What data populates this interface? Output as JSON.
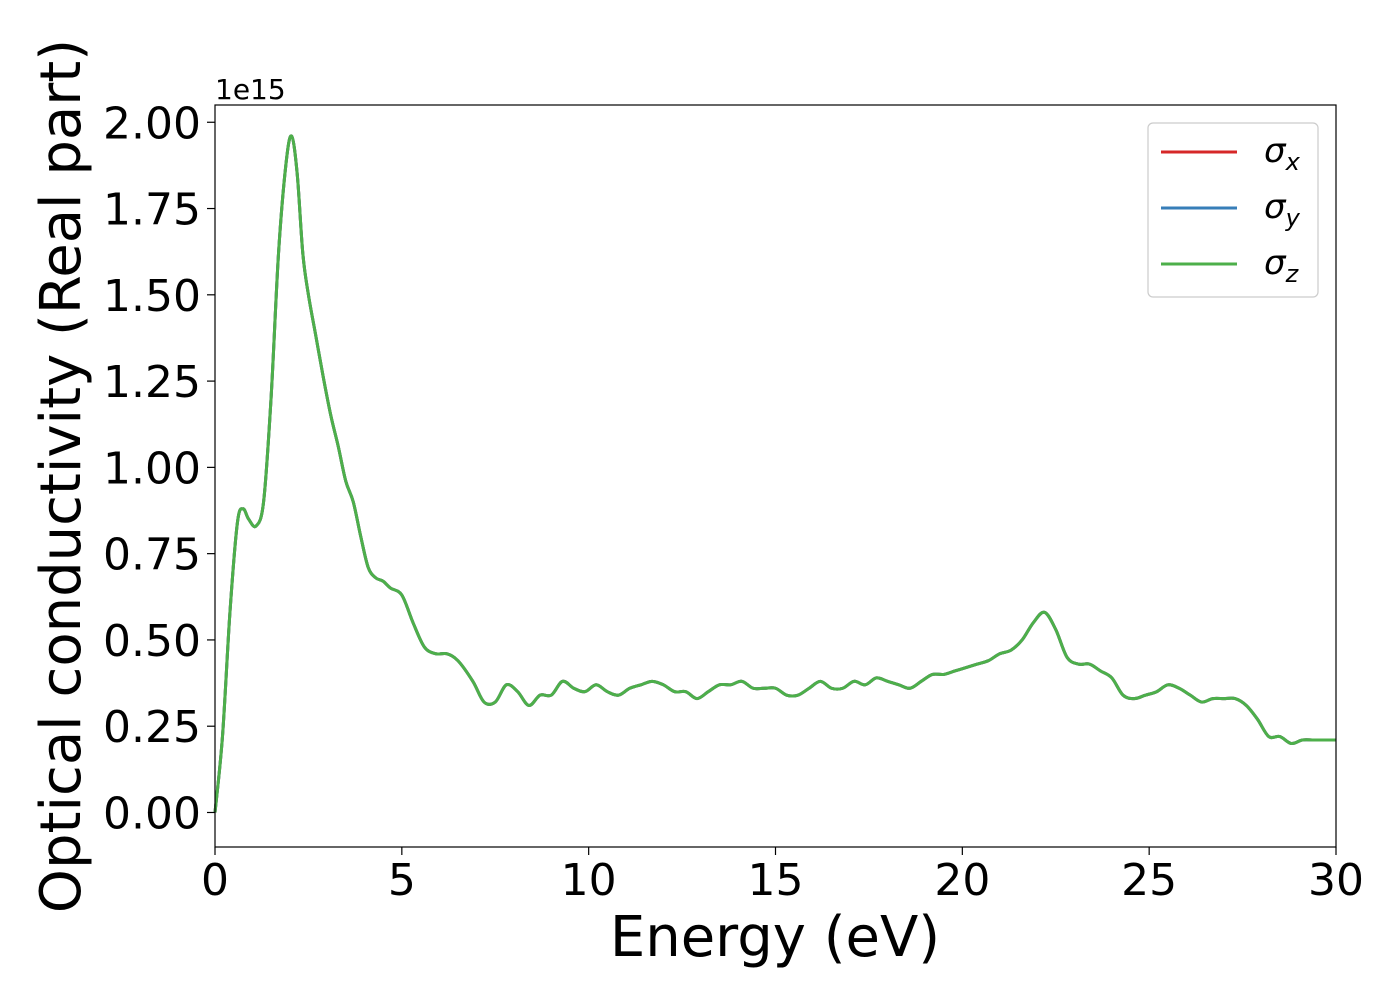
{
  "chart_data": {
    "type": "line",
    "xlabel": "Energy (eV)",
    "ylabel": "Optical conductivity (Real part)",
    "y_offset_label": "1e15",
    "xlim": [
      0,
      30
    ],
    "ylim": [
      -0.1,
      2.05
    ],
    "x_ticks": [
      0,
      5,
      10,
      15,
      20,
      25,
      30
    ],
    "x_tick_labels": [
      "0",
      "5",
      "10",
      "15",
      "20",
      "25",
      "30"
    ],
    "y_ticks": [
      0.0,
      0.25,
      0.5,
      0.75,
      1.0,
      1.25,
      1.5,
      1.75,
      2.0
    ],
    "y_tick_labels": [
      "0.00",
      "0.25",
      "0.50",
      "0.75",
      "1.00",
      "1.25",
      "1.50",
      "1.75",
      "2.00"
    ],
    "grid": false,
    "legend_position": "top-right",
    "series": [
      {
        "name": "σx",
        "symbol": "σ",
        "sub": "x",
        "color": "#d62728"
      },
      {
        "name": "σy",
        "symbol": "σ",
        "sub": "y",
        "color": "#377eb8"
      },
      {
        "name": "σz",
        "symbol": "σ",
        "sub": "z",
        "color": "#4daf4a"
      }
    ],
    "x": [
      0.0,
      0.2,
      0.4,
      0.6,
      0.75,
      0.9,
      1.1,
      1.3,
      1.5,
      1.7,
      1.9,
      2.05,
      2.2,
      2.35,
      2.5,
      2.7,
      2.9,
      3.1,
      3.3,
      3.5,
      3.7,
      3.9,
      4.1,
      4.3,
      4.5,
      4.7,
      5.0,
      5.3,
      5.6,
      5.9,
      6.2,
      6.5,
      6.9,
      7.2,
      7.5,
      7.8,
      8.1,
      8.4,
      8.7,
      9.0,
      9.3,
      9.6,
      9.9,
      10.2,
      10.5,
      10.8,
      11.1,
      11.4,
      11.7,
      12.0,
      12.3,
      12.6,
      12.9,
      13.2,
      13.5,
      13.8,
      14.1,
      14.4,
      14.7,
      15.0,
      15.3,
      15.6,
      15.9,
      16.2,
      16.5,
      16.8,
      17.1,
      17.4,
      17.7,
      18.0,
      18.3,
      18.6,
      18.9,
      19.2,
      19.5,
      19.8,
      20.1,
      20.4,
      20.7,
      21.0,
      21.3,
      21.6,
      21.9,
      22.2,
      22.5,
      22.8,
      23.1,
      23.4,
      23.7,
      24.0,
      24.3,
      24.6,
      24.9,
      25.2,
      25.5,
      25.8,
      26.1,
      26.4,
      26.7,
      27.0,
      27.3,
      27.6,
      27.9,
      28.2,
      28.5,
      28.8,
      29.1,
      29.4,
      29.7,
      30.0
    ],
    "y": [
      0.0,
      0.22,
      0.58,
      0.84,
      0.88,
      0.85,
      0.83,
      0.9,
      1.2,
      1.62,
      1.88,
      1.96,
      1.85,
      1.62,
      1.5,
      1.38,
      1.26,
      1.15,
      1.06,
      0.96,
      0.9,
      0.8,
      0.71,
      0.68,
      0.67,
      0.65,
      0.63,
      0.55,
      0.48,
      0.46,
      0.46,
      0.44,
      0.38,
      0.32,
      0.32,
      0.37,
      0.35,
      0.31,
      0.34,
      0.34,
      0.38,
      0.36,
      0.35,
      0.37,
      0.35,
      0.34,
      0.36,
      0.37,
      0.38,
      0.37,
      0.35,
      0.35,
      0.33,
      0.35,
      0.37,
      0.37,
      0.38,
      0.36,
      0.36,
      0.36,
      0.34,
      0.34,
      0.36,
      0.38,
      0.36,
      0.36,
      0.38,
      0.37,
      0.39,
      0.38,
      0.37,
      0.36,
      0.38,
      0.4,
      0.4,
      0.41,
      0.42,
      0.43,
      0.44,
      0.46,
      0.47,
      0.5,
      0.55,
      0.58,
      0.53,
      0.45,
      0.43,
      0.43,
      0.41,
      0.39,
      0.34,
      0.33,
      0.34,
      0.35,
      0.37,
      0.36,
      0.34,
      0.32,
      0.33,
      0.33,
      0.33,
      0.31,
      0.27,
      0.22,
      0.22,
      0.2,
      0.21,
      0.21,
      0.21,
      0.21
    ]
  }
}
